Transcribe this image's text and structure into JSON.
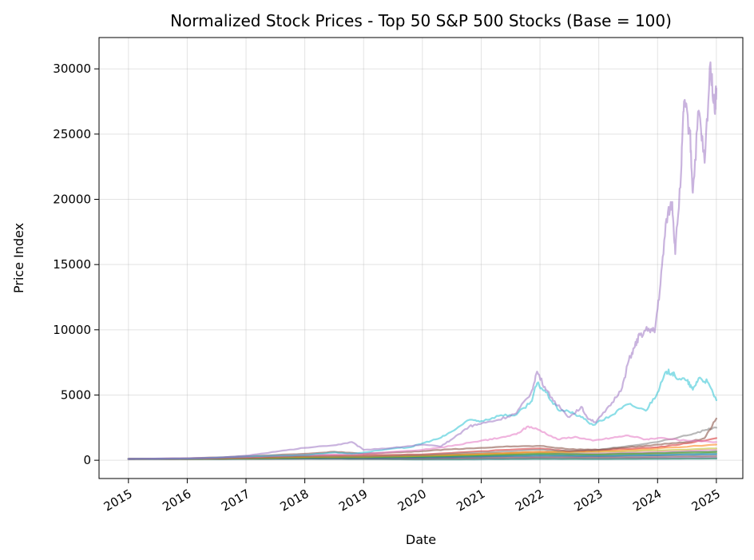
{
  "chart_data": {
    "type": "line",
    "title": "Normalized Stock Prices - Top 50 S&P 500 Stocks (Base = 100)",
    "xlabel": "Date",
    "ylabel": "Price Index",
    "xlim": [
      2014.5,
      2025.45
    ],
    "ylim": [
      -1400,
      32400
    ],
    "x_ticks": [
      "2015",
      "2016",
      "2017",
      "2018",
      "2019",
      "2020",
      "2021",
      "2022",
      "2023",
      "2024",
      "2025"
    ],
    "y_ticks": [
      0,
      5000,
      10000,
      15000,
      20000,
      25000,
      30000
    ],
    "grid": true,
    "legend": "none",
    "series": [
      {
        "color": "#9467bd",
        "alpha": 0.5,
        "points": [
          [
            2015.0,
            100
          ],
          [
            2015.5,
            130
          ],
          [
            2016.0,
            140
          ],
          [
            2016.5,
            180
          ],
          [
            2017.0,
            350
          ],
          [
            2017.5,
            650
          ],
          [
            2018.0,
            950
          ],
          [
            2018.5,
            1150
          ],
          [
            2018.8,
            1400
          ],
          [
            2019.0,
            800
          ],
          [
            2019.5,
            950
          ],
          [
            2020.0,
            1200
          ],
          [
            2020.3,
            1050
          ],
          [
            2020.5,
            1600
          ],
          [
            2020.8,
            2600
          ],
          [
            2021.0,
            2800
          ],
          [
            2021.3,
            3100
          ],
          [
            2021.6,
            3600
          ],
          [
            2021.85,
            5200
          ],
          [
            2021.95,
            6800
          ],
          [
            2022.1,
            5400
          ],
          [
            2022.3,
            4200
          ],
          [
            2022.5,
            3300
          ],
          [
            2022.7,
            4100
          ],
          [
            2022.8,
            3300
          ],
          [
            2022.95,
            2900
          ],
          [
            2023.2,
            4200
          ],
          [
            2023.4,
            5600
          ],
          [
            2023.5,
            7500
          ],
          [
            2023.6,
            8600
          ],
          [
            2023.7,
            9600
          ],
          [
            2023.85,
            10100
          ],
          [
            2023.95,
            9800
          ],
          [
            2024.05,
            13500
          ],
          [
            2024.15,
            18500
          ],
          [
            2024.25,
            19800
          ],
          [
            2024.3,
            15800
          ],
          [
            2024.4,
            22000
          ],
          [
            2024.45,
            27500
          ],
          [
            2024.55,
            25200
          ],
          [
            2024.6,
            20500
          ],
          [
            2024.7,
            26800
          ],
          [
            2024.8,
            22800
          ],
          [
            2024.9,
            30500
          ],
          [
            2024.97,
            26800
          ],
          [
            2025.0,
            28500
          ]
        ]
      },
      {
        "color": "#17becf",
        "alpha": 0.5,
        "points": [
          [
            2015.0,
            100
          ],
          [
            2015.5,
            120
          ],
          [
            2016.0,
            130
          ],
          [
            2016.5,
            200
          ],
          [
            2017.0,
            300
          ],
          [
            2017.5,
            350
          ],
          [
            2018.0,
            400
          ],
          [
            2018.5,
            600
          ],
          [
            2018.8,
            500
          ],
          [
            2019.0,
            600
          ],
          [
            2019.5,
            900
          ],
          [
            2019.8,
            1000
          ],
          [
            2020.0,
            1300
          ],
          [
            2020.3,
            1700
          ],
          [
            2020.5,
            2200
          ],
          [
            2020.8,
            3100
          ],
          [
            2021.0,
            3000
          ],
          [
            2021.3,
            3400
          ],
          [
            2021.6,
            3500
          ],
          [
            2021.85,
            4500
          ],
          [
            2021.95,
            5900
          ],
          [
            2022.1,
            5200
          ],
          [
            2022.3,
            3900
          ],
          [
            2022.5,
            3700
          ],
          [
            2022.7,
            3300
          ],
          [
            2022.9,
            2700
          ],
          [
            2023.2,
            3400
          ],
          [
            2023.5,
            4300
          ],
          [
            2023.8,
            3800
          ],
          [
            2024.0,
            5200
          ],
          [
            2024.15,
            6800
          ],
          [
            2024.25,
            6700
          ],
          [
            2024.3,
            6400
          ],
          [
            2024.5,
            6100
          ],
          [
            2024.6,
            5400
          ],
          [
            2024.7,
            6300
          ],
          [
            2024.85,
            6000
          ],
          [
            2025.0,
            4600
          ]
        ]
      },
      {
        "color": "#e377c2",
        "alpha": 0.55,
        "points": [
          [
            2015.0,
            100
          ],
          [
            2016.0,
            150
          ],
          [
            2017.0,
            250
          ],
          [
            2018.0,
            400
          ],
          [
            2019.0,
            500
          ],
          [
            2020.0,
            800
          ],
          [
            2020.5,
            1100
          ],
          [
            2021.0,
            1500
          ],
          [
            2021.3,
            1700
          ],
          [
            2021.6,
            2000
          ],
          [
            2021.8,
            2600
          ],
          [
            2022.0,
            2300
          ],
          [
            2022.3,
            1600
          ],
          [
            2022.6,
            1800
          ],
          [
            2022.9,
            1500
          ],
          [
            2023.2,
            1700
          ],
          [
            2023.5,
            1900
          ],
          [
            2023.8,
            1600
          ],
          [
            2024.0,
            1700
          ],
          [
            2024.5,
            1500
          ],
          [
            2025.0,
            1400
          ]
        ]
      },
      {
        "color": "#8c564b",
        "alpha": 0.6,
        "points": [
          [
            2015.0,
            100
          ],
          [
            2016.0,
            150
          ],
          [
            2017.0,
            300
          ],
          [
            2018.0,
            500
          ],
          [
            2018.5,
            650
          ],
          [
            2019.0,
            500
          ],
          [
            2019.5,
            600
          ],
          [
            2020.0,
            700
          ],
          [
            2020.5,
            850
          ],
          [
            2021.0,
            950
          ],
          [
            2021.5,
            1050
          ],
          [
            2022.0,
            1100
          ],
          [
            2022.5,
            850
          ],
          [
            2023.0,
            800
          ],
          [
            2023.5,
            1000
          ],
          [
            2024.0,
            1200
          ],
          [
            2024.5,
            1400
          ],
          [
            2024.8,
            1700
          ],
          [
            2025.0,
            3200
          ]
        ]
      },
      {
        "color": "#7f7f7f",
        "alpha": 0.55,
        "points": [
          [
            2015.0,
            100
          ],
          [
            2016.0,
            120
          ],
          [
            2017.0,
            200
          ],
          [
            2018.0,
            300
          ],
          [
            2019.0,
            300
          ],
          [
            2020.0,
            400
          ],
          [
            2021.0,
            600
          ],
          [
            2022.0,
            800
          ],
          [
            2022.5,
            700
          ],
          [
            2023.0,
            800
          ],
          [
            2023.5,
            1100
          ],
          [
            2024.0,
            1400
          ],
          [
            2024.5,
            1900
          ],
          [
            2024.8,
            2300
          ],
          [
            2025.0,
            2500
          ]
        ]
      },
      {
        "color": "#d62728",
        "alpha": 0.55,
        "points": [
          [
            2015.0,
            100
          ],
          [
            2016.0,
            130
          ],
          [
            2017.0,
            200
          ],
          [
            2018.0,
            350
          ],
          [
            2019.0,
            400
          ],
          [
            2020.0,
            450
          ],
          [
            2021.0,
            700
          ],
          [
            2022.0,
            900
          ],
          [
            2022.5,
            700
          ],
          [
            2023.0,
            800
          ],
          [
            2024.0,
            1000
          ],
          [
            2024.5,
            1300
          ],
          [
            2025.0,
            1700
          ]
        ]
      },
      {
        "color": "#ff7f0e",
        "alpha": 0.55,
        "points": [
          [
            2015.0,
            100
          ],
          [
            2016.0,
            120
          ],
          [
            2017.0,
            180
          ],
          [
            2018.0,
            260
          ],
          [
            2019.0,
            300
          ],
          [
            2020.0,
            380
          ],
          [
            2021.0,
            500
          ],
          [
            2022.0,
            650
          ],
          [
            2023.0,
            700
          ],
          [
            2024.0,
            900
          ],
          [
            2025.0,
            1200
          ]
        ]
      },
      {
        "color": "#bcbd22",
        "alpha": 0.55,
        "points": [
          [
            2015.0,
            100
          ],
          [
            2016.0,
            110
          ],
          [
            2017.0,
            160
          ],
          [
            2018.0,
            230
          ],
          [
            2019.0,
            250
          ],
          [
            2020.0,
            330
          ],
          [
            2021.0,
            450
          ],
          [
            2022.0,
            600
          ],
          [
            2023.0,
            650
          ],
          [
            2024.0,
            750
          ],
          [
            2025.0,
            900
          ]
        ]
      },
      {
        "color": "#2ca02c",
        "alpha": 0.55,
        "points": [
          [
            2015.0,
            100
          ],
          [
            2016.0,
            115
          ],
          [
            2017.0,
            150
          ],
          [
            2018.0,
            200
          ],
          [
            2019.0,
            230
          ],
          [
            2020.0,
            280
          ],
          [
            2021.0,
            380
          ],
          [
            2022.0,
            500
          ],
          [
            2023.0,
            450
          ],
          [
            2024.0,
            550
          ],
          [
            2025.0,
            650
          ]
        ]
      },
      {
        "color": "#1f77b4",
        "alpha": 0.55,
        "points": [
          [
            2015.0,
            100
          ],
          [
            2016.0,
            105
          ],
          [
            2017.0,
            130
          ],
          [
            2018.0,
            170
          ],
          [
            2019.0,
            180
          ],
          [
            2020.0,
            220
          ],
          [
            2021.0,
            280
          ],
          [
            2022.0,
            350
          ],
          [
            2023.0,
            320
          ],
          [
            2024.0,
            380
          ],
          [
            2025.0,
            450
          ]
        ]
      },
      {
        "color": "#8c564b",
        "alpha": 0.55,
        "points": [
          [
            2015.0,
            100
          ],
          [
            2016.0,
            100
          ],
          [
            2017.0,
            120
          ],
          [
            2018.0,
            140
          ],
          [
            2019.0,
            150
          ],
          [
            2020.0,
            170
          ],
          [
            2021.0,
            220
          ],
          [
            2022.0,
            260
          ],
          [
            2023.0,
            250
          ],
          [
            2024.0,
            290
          ],
          [
            2025.0,
            330
          ]
        ]
      },
      {
        "color": "#17becf",
        "alpha": 0.55,
        "points": [
          [
            2015.0,
            100
          ],
          [
            2016.0,
            110
          ],
          [
            2017.0,
            130
          ],
          [
            2018.0,
            160
          ],
          [
            2019.0,
            180
          ],
          [
            2020.0,
            200
          ],
          [
            2021.0,
            300
          ],
          [
            2022.0,
            400
          ],
          [
            2023.0,
            350
          ],
          [
            2024.0,
            420
          ],
          [
            2025.0,
            520
          ]
        ]
      },
      {
        "color": "#9467bd",
        "alpha": 0.55,
        "points": [
          [
            2015.0,
            100
          ],
          [
            2016.0,
            95
          ],
          [
            2017.0,
            110
          ],
          [
            2018.0,
            120
          ],
          [
            2019.0,
            110
          ],
          [
            2020.0,
            120
          ],
          [
            2021.0,
            150
          ],
          [
            2022.0,
            180
          ],
          [
            2023.0,
            170
          ],
          [
            2024.0,
            200
          ],
          [
            2025.0,
            230
          ]
        ]
      },
      {
        "color": "#2ca02c",
        "alpha": 0.55,
        "points": [
          [
            2015.0,
            100
          ],
          [
            2016.0,
            90
          ],
          [
            2017.0,
            100
          ],
          [
            2018.0,
            110
          ],
          [
            2019.0,
            100
          ],
          [
            2020.0,
            80
          ],
          [
            2021.0,
            110
          ],
          [
            2022.0,
            130
          ],
          [
            2023.0,
            120
          ],
          [
            2024.0,
            140
          ],
          [
            2025.0,
            160
          ]
        ]
      },
      {
        "color": "#1f77b4",
        "alpha": 0.5,
        "points": [
          [
            2015.0,
            100
          ],
          [
            2016.0,
            95
          ],
          [
            2017.0,
            105
          ],
          [
            2018.0,
            110
          ],
          [
            2019.0,
            100
          ],
          [
            2020.0,
            60
          ],
          [
            2021.0,
            70
          ],
          [
            2022.0,
            90
          ],
          [
            2023.0,
            80
          ],
          [
            2024.0,
            100
          ],
          [
            2025.0,
            120
          ]
        ]
      },
      {
        "color": "#e377c2",
        "alpha": 0.5,
        "points": [
          [
            2015.0,
            100
          ],
          [
            2016.0,
            120
          ],
          [
            2017.0,
            170
          ],
          [
            2018.0,
            250
          ],
          [
            2019.0,
            300
          ],
          [
            2020.0,
            360
          ],
          [
            2021.0,
            480
          ],
          [
            2022.0,
            600
          ],
          [
            2023.0,
            560
          ],
          [
            2024.0,
            650
          ],
          [
            2025.0,
            800
          ]
        ]
      },
      {
        "color": "#ff7f0e",
        "alpha": 0.5,
        "points": [
          [
            2015.0,
            100
          ],
          [
            2016.0,
            108
          ],
          [
            2017.0,
            140
          ],
          [
            2018.0,
            190
          ],
          [
            2019.0,
            210
          ],
          [
            2020.0,
            260
          ],
          [
            2021.0,
            340
          ],
          [
            2022.0,
            420
          ],
          [
            2023.0,
            400
          ],
          [
            2024.0,
            470
          ],
          [
            2025.0,
            560
          ]
        ]
      },
      {
        "color": "#7f7f7f",
        "alpha": 0.5,
        "points": [
          [
            2015.0,
            100
          ],
          [
            2016.0,
            112
          ],
          [
            2017.0,
            150
          ],
          [
            2018.0,
            210
          ],
          [
            2019.0,
            240
          ],
          [
            2020.0,
            300
          ],
          [
            2021.0,
            400
          ],
          [
            2022.0,
            520
          ],
          [
            2023.0,
            480
          ],
          [
            2024.0,
            580
          ],
          [
            2025.0,
            700
          ]
        ]
      }
    ]
  }
}
